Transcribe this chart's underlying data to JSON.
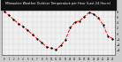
{
  "title": "Milwaukee Weather Outdoor Temperature per Hour (Last 24 Hours)",
  "hours": [
    0,
    1,
    2,
    3,
    4,
    5,
    6,
    7,
    8,
    9,
    10,
    11,
    12,
    13,
    14,
    15,
    16,
    17,
    18,
    19,
    20,
    21,
    22,
    23
  ],
  "temps": [
    8.0,
    6.5,
    5.0,
    3.5,
    2.5,
    1.0,
    -0.5,
    -2.0,
    -3.5,
    -5.0,
    -5.5,
    -6.0,
    -4.5,
    -2.5,
    2.0,
    4.0,
    4.5,
    6.0,
    7.5,
    7.0,
    5.5,
    3.0,
    -1.0,
    -2.0
  ],
  "line_color": "#ff0000",
  "marker_color": "#000000",
  "bg_color": "#f0f0f0",
  "title_bg": "#111111",
  "title_color": "#ffffff",
  "grid_color": "#888888",
  "ylabel_color": "#000000",
  "ylim": [
    -8,
    10
  ],
  "yticks": [
    8,
    6,
    4,
    2,
    0,
    -2,
    -4,
    -6
  ],
  "xtick_labels": [
    "0",
    "1",
    "2",
    "3",
    "4",
    "5",
    "6",
    "7",
    "8",
    "9",
    "10",
    "11",
    "12",
    "13",
    "14",
    "15",
    "16",
    "17",
    "18",
    "19",
    "20",
    "21",
    "22",
    "23"
  ],
  "fig_bg": "#cccccc"
}
